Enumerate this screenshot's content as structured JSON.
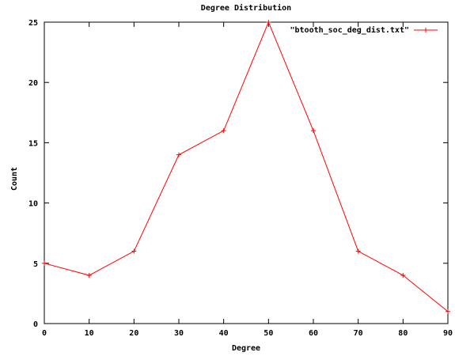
{
  "chart_data": {
    "type": "line",
    "title": "Degree Distribution",
    "xlabel": "Degree",
    "ylabel": "Count",
    "xlim": [
      0,
      90
    ],
    "ylim": [
      0,
      25
    ],
    "x_ticks": [
      0,
      10,
      20,
      30,
      40,
      50,
      60,
      70,
      80,
      90
    ],
    "y_ticks": [
      0,
      5,
      10,
      15,
      20,
      25
    ],
    "grid": false,
    "legend_position": "top-right",
    "series": [
      {
        "name": "\"btooth_soc_deg_dist.txt\"",
        "color": "#ff0000",
        "marker": "plus",
        "x": [
          0,
          10,
          20,
          30,
          40,
          50,
          60,
          70,
          80,
          90
        ],
        "y": [
          5,
          4,
          6,
          14,
          16,
          25,
          16,
          6,
          4,
          1
        ]
      }
    ]
  }
}
